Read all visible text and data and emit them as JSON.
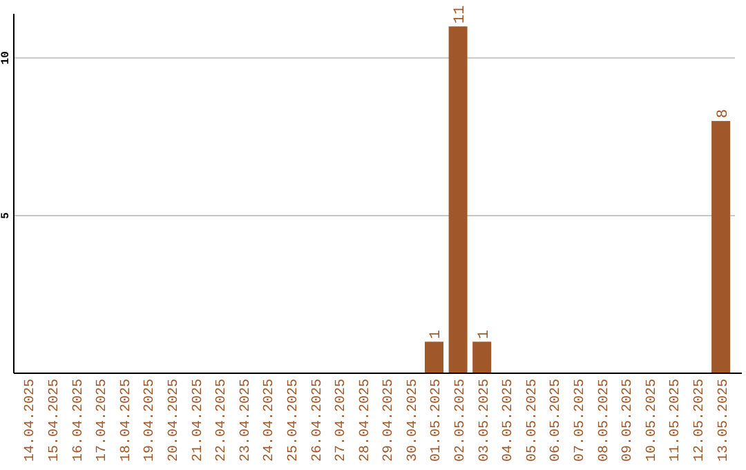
{
  "chart_data": {
    "type": "bar",
    "categories": [
      "14.04.2025",
      "15.04.2025",
      "16.04.2025",
      "17.04.2025",
      "18.04.2025",
      "19.04.2025",
      "20.04.2025",
      "21.04.2025",
      "22.04.2025",
      "23.04.2025",
      "24.04.2025",
      "25.04.2025",
      "26.04.2025",
      "27.04.2025",
      "28.04.2025",
      "29.04.2025",
      "30.04.2025",
      "01.05.2025",
      "02.05.2025",
      "03.05.2025",
      "04.05.2025",
      "05.05.2025",
      "06.05.2025",
      "07.05.2025",
      "08.05.2025",
      "09.05.2025",
      "10.05.2025",
      "11.05.2025",
      "12.05.2025",
      "13.05.2025"
    ],
    "values": [
      0,
      0,
      0,
      0,
      0,
      0,
      0,
      0,
      0,
      0,
      0,
      0,
      0,
      0,
      0,
      0,
      0,
      1,
      11,
      1,
      0,
      0,
      0,
      0,
      0,
      0,
      0,
      0,
      0,
      8
    ],
    "value_labels": [
      null,
      null,
      null,
      null,
      null,
      null,
      null,
      null,
      null,
      null,
      null,
      null,
      null,
      null,
      null,
      null,
      null,
      "1",
      "11",
      "1",
      null,
      null,
      null,
      null,
      null,
      null,
      null,
      null,
      null,
      "8"
    ],
    "color": "#a0582a",
    "ylim": [
      0,
      11.4
    ],
    "yticks": [
      5,
      10
    ],
    "grid": "y"
  }
}
